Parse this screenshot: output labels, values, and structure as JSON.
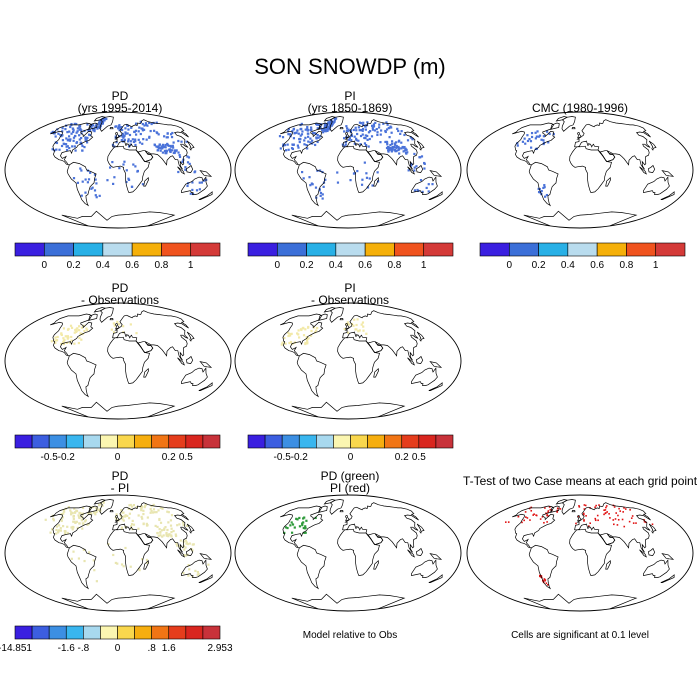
{
  "figure": {
    "title": "SON SNOWDP (m)",
    "note_model": "Model relative to Obs",
    "note_ttest": "Cells are significant at 0.1 level"
  },
  "colors": {
    "abs_bar": [
      "#3a1fe0",
      "#3b6fd8",
      "#28b0e6",
      "#b9dcee",
      "#f5b00a",
      "#f0531e",
      "#d43a38"
    ],
    "diff_bar": [
      "#3a1fe0",
      "#3c5ee0",
      "#3c8fe3",
      "#39b6ef",
      "#a8d9ef",
      "#fbf6b1",
      "#f9d74d",
      "#f6ae0f",
      "#f17515",
      "#e53d1c",
      "#d9261f",
      "#c8323a"
    ],
    "pd_dots": "#4a72d9",
    "diff_dots": "#f2e9a8",
    "pdpi_dots": "#e8e5b0",
    "green_dots": "#2e9a3a",
    "red_dots": "#e01212"
  },
  "chart_data": [
    {
      "type": "heatmap",
      "id": "pd",
      "title_lines": [
        "PD",
        "(yrs 1995-2014)"
      ],
      "colorbar": {
        "ticks": [
          "0",
          "0.2",
          "0.4",
          "0.6",
          "0.8",
          "1"
        ]
      }
    },
    {
      "type": "heatmap",
      "id": "pi",
      "title_lines": [
        "PI",
        "(yrs 1850-1869)"
      ],
      "colorbar": {
        "ticks": [
          "0",
          "0.2",
          "0.4",
          "0.6",
          "0.8",
          "1"
        ]
      }
    },
    {
      "type": "heatmap",
      "id": "cmc",
      "title_lines": [
        "CMC (1980-1996)"
      ],
      "colorbar": {
        "ticks": [
          "0",
          "0.2",
          "0.4",
          "0.6",
          "0.8",
          "1"
        ]
      }
    },
    {
      "type": "heatmap",
      "id": "pd_obs",
      "title_lines": [
        "PD",
        "- Observations"
      ],
      "colorbar": {
        "ticks": [
          "-0.5",
          "-0.2",
          "0",
          "0.2",
          "0.5"
        ]
      }
    },
    {
      "type": "heatmap",
      "id": "pi_obs",
      "title_lines": [
        "PI",
        "- Observations"
      ],
      "colorbar": {
        "ticks": [
          "-0.5",
          "-0.2",
          "0",
          "0.2",
          "0.5"
        ]
      }
    },
    {
      "type": "heatmap",
      "id": "pd_pi",
      "title_lines": [
        "PD",
        "- PI"
      ],
      "colorbar": {
        "ticks": [
          "-14.851",
          "-1.6",
          "-.8",
          "0",
          ".8",
          "1.6",
          "2.953"
        ]
      }
    },
    {
      "type": "heatmap",
      "id": "pd_green_pi_red",
      "title_lines": [
        "PD (green)",
        "PI (red)"
      ]
    },
    {
      "type": "heatmap",
      "id": "ttest",
      "title_lines": [
        "T-Test of two Case means at each grid point"
      ]
    }
  ]
}
